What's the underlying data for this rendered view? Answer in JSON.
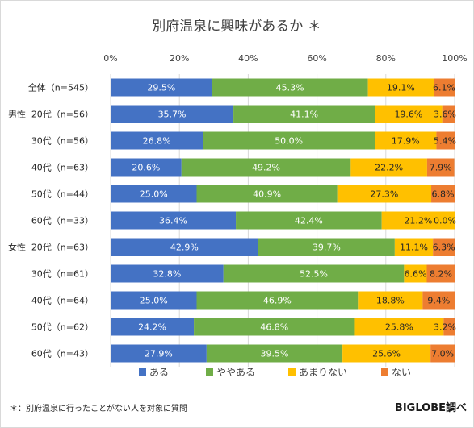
{
  "chart_data": {
    "type": "bar",
    "orientation": "horizontal",
    "stacked": true,
    "title": "別府温泉に興味があるか ＊",
    "x_ticks": [
      "0%",
      "20%",
      "40%",
      "60%",
      "80%",
      "100%"
    ],
    "xlim": [
      0,
      100
    ],
    "grid": true,
    "legend_position": "bottom",
    "categories": [
      {
        "group": "",
        "label": "全体（n=545）"
      },
      {
        "group": "男性",
        "label": "20代（n=56）"
      },
      {
        "group": "",
        "label": "30代（n=56）"
      },
      {
        "group": "",
        "label": "40代（n=63）"
      },
      {
        "group": "",
        "label": "50代（n=44）"
      },
      {
        "group": "",
        "label": "60代（n=33）"
      },
      {
        "group": "女性",
        "label": "20代（n=63）"
      },
      {
        "group": "",
        "label": "30代（n=61）"
      },
      {
        "group": "",
        "label": "40代（n=64）"
      },
      {
        "group": "",
        "label": "50代（n=62）"
      },
      {
        "group": "",
        "label": "60代（n=43）"
      }
    ],
    "series": [
      {
        "name": "ある",
        "color": "#4472c4",
        "label_color": "#ffffff",
        "values": [
          29.5,
          35.7,
          26.8,
          20.6,
          25.0,
          36.4,
          42.9,
          32.8,
          25.0,
          24.2,
          27.9
        ],
        "labels": [
          "29.5%",
          "35.7%",
          "26.8%",
          "20.6%",
          "25.0%",
          "36.4%",
          "42.9%",
          "32.8%",
          "25.0%",
          "24.2%",
          "27.9%"
        ]
      },
      {
        "name": "ややある",
        "color": "#70ad47",
        "label_color": "#ffffff",
        "values": [
          45.3,
          41.1,
          50.0,
          49.2,
          40.9,
          42.4,
          39.7,
          52.5,
          46.9,
          46.8,
          39.5
        ],
        "labels": [
          "45.3%",
          "41.1%",
          "50.0%",
          "49.2%",
          "40.9%",
          "42.4%",
          "39.7%",
          "52.5%",
          "46.9%",
          "46.8%",
          "39.5%"
        ]
      },
      {
        "name": "あまりない",
        "color": "#ffc000",
        "label_color": "#262626",
        "values": [
          19.1,
          19.6,
          17.9,
          22.2,
          27.3,
          21.2,
          11.1,
          6.6,
          18.8,
          25.8,
          25.6
        ],
        "labels": [
          "19.1%",
          "19.6%",
          "17.9%",
          "22.2%",
          "27.3%",
          "21.2%",
          "11.1%",
          "6.6%",
          "18.8%",
          "25.8%",
          "25.6%"
        ]
      },
      {
        "name": "ない",
        "color": "#ed7d31",
        "label_color": "#262626",
        "values": [
          6.1,
          3.6,
          5.4,
          7.9,
          6.8,
          0.0,
          6.3,
          8.2,
          9.4,
          3.2,
          7.0
        ],
        "labels": [
          "6.1%",
          "3.6%",
          "5.4%",
          "7.9%",
          "6.8%",
          "0.0%",
          "6.3%",
          "8.2%",
          "9.4%",
          "3.2%",
          "7.0%"
        ]
      }
    ]
  },
  "footnote": "＊：別府温泉に行ったことがない人を対象に質問",
  "brand": "BIGLOBE調べ"
}
